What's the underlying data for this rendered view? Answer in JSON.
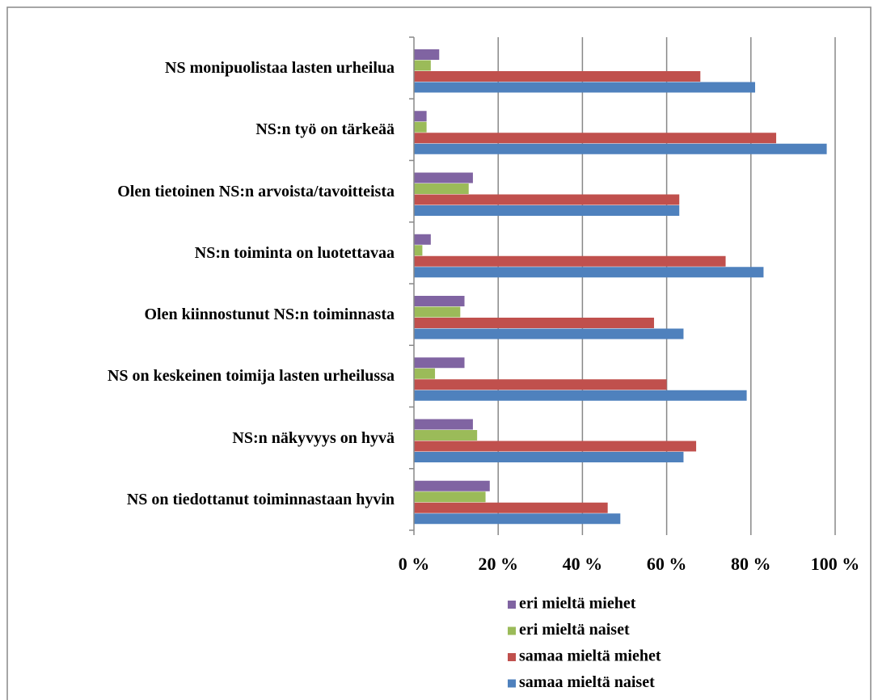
{
  "chart_data": {
    "type": "hbar",
    "categories": [
      "NS monipuolistaa lasten urheilua",
      "NS:n työ on tärkeää",
      "Olen tietoinen NS:n arvoista/tavoitteista",
      "NS:n toiminta on luotettavaa",
      "Olen kiinnostunut NS:n toiminnasta",
      "NS on keskeinen toimija lasten urheilussa",
      "NS:n näkyvyys on hyvä",
      "NS on tiedottanut toiminnastaan hyvin"
    ],
    "series": [
      {
        "name": "eri mieltä miehet",
        "color": "#8064a2",
        "values": [
          6,
          3,
          14,
          4,
          12,
          12,
          14,
          18
        ]
      },
      {
        "name": "eri mieltä naiset",
        "color": "#9bbb59",
        "values": [
          4,
          3,
          13,
          2,
          11,
          5,
          15,
          17
        ]
      },
      {
        "name": "samaa mieltä miehet",
        "color": "#c0504d",
        "values": [
          68,
          86,
          63,
          74,
          57,
          60,
          67,
          46
        ]
      },
      {
        "name": "samaa mieltä naiset",
        "color": "#4f81bd",
        "values": [
          81,
          98,
          63,
          83,
          64,
          79,
          64,
          49
        ]
      }
    ],
    "xlim": [
      0,
      100
    ],
    "xticks": [
      {
        "value": 0,
        "label": "0 %"
      },
      {
        "value": 20,
        "label": "20 %"
      },
      {
        "value": 40,
        "label": "40 %"
      },
      {
        "value": 60,
        "label": "60 %"
      },
      {
        "value": 80,
        "label": "80 %"
      },
      {
        "value": 100,
        "label": "100 %"
      }
    ],
    "grid": true
  }
}
